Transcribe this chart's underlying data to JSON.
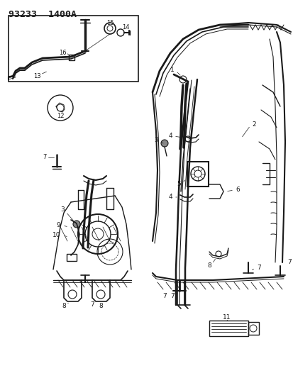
{
  "title": "93233  1400A",
  "bg_color": "#ffffff",
  "lc": "#1a1a1a",
  "fig_width": 4.14,
  "fig_height": 5.33,
  "dpi": 100
}
